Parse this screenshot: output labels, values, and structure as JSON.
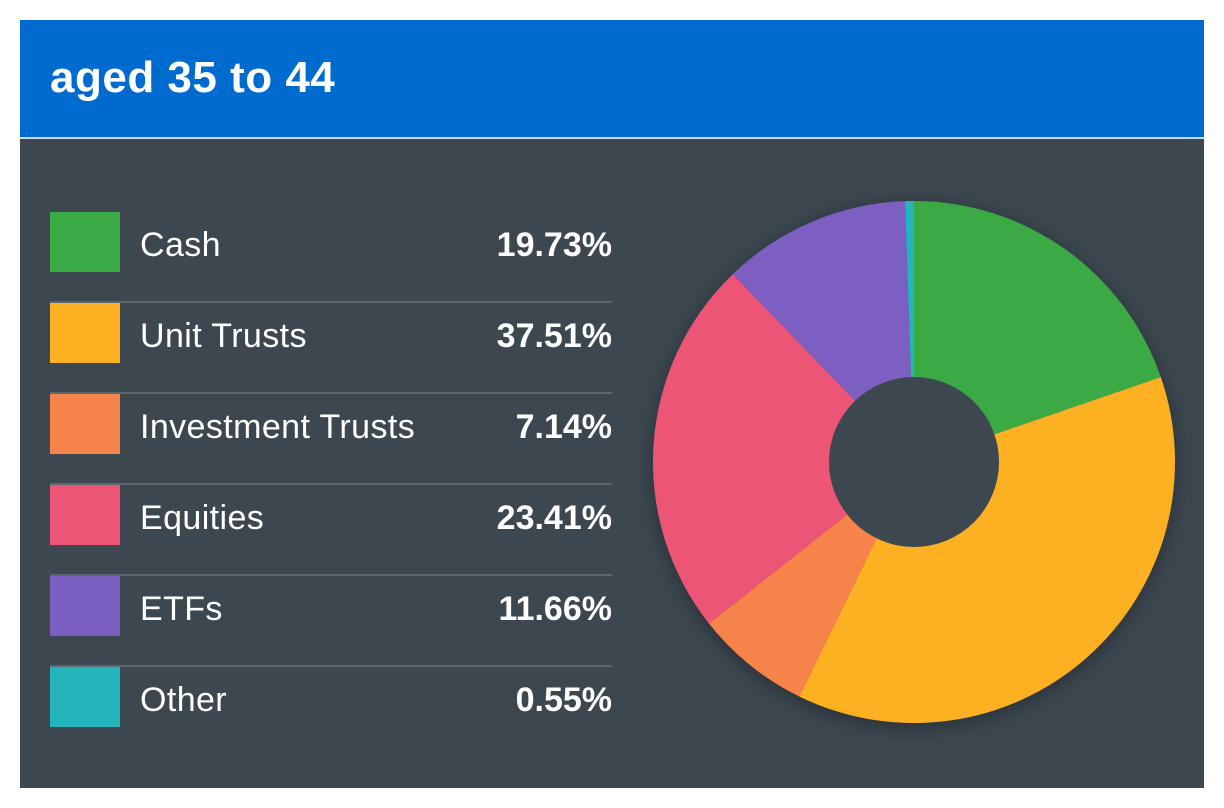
{
  "header": {
    "title": "aged 35 to 44"
  },
  "colors": {
    "header_bg": "#006bcf",
    "panel_bg": "#3c4750",
    "hole": "#3c4750"
  },
  "legend": [
    {
      "label": "Cash",
      "value": "19.73%",
      "color": "#3aaa44"
    },
    {
      "label": "Unit Trusts",
      "value": "37.51%",
      "color": "#fdb022"
    },
    {
      "label": "Investment Trusts",
      "value": "7.14%",
      "color": "#f6834a"
    },
    {
      "label": "Equities",
      "value": "23.41%",
      "color": "#ec5575"
    },
    {
      "label": "ETFs",
      "value": "11.66%",
      "color": "#7b5fc0"
    },
    {
      "label": "Other",
      "value": "0.55%",
      "color": "#23b5bb"
    }
  ],
  "chart_data": {
    "type": "pie",
    "donut": true,
    "title": "aged 35 to 44",
    "categories": [
      "Cash",
      "Unit Trusts",
      "Investment Trusts",
      "Equities",
      "ETFs",
      "Other"
    ],
    "values": [
      19.73,
      37.51,
      7.14,
      23.41,
      11.66,
      0.55
    ],
    "colors": [
      "#3aaa44",
      "#fdb022",
      "#f6834a",
      "#ec5575",
      "#7b5fc0",
      "#23b5bb"
    ],
    "start_angle": "top",
    "direction": "clockwise",
    "legend": "left"
  }
}
